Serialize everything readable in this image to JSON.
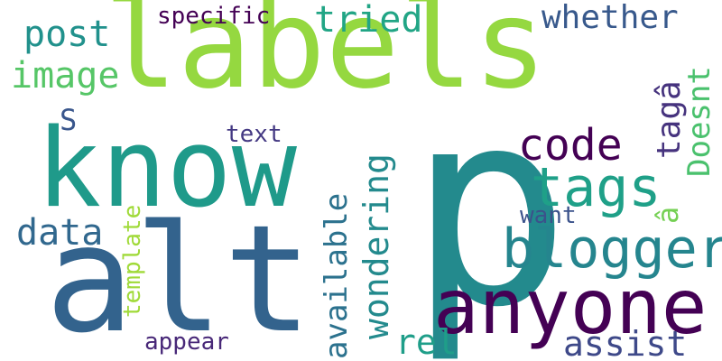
{
  "title": "",
  "words": [
    {
      "key": "labels",
      "text": "labels",
      "color": "#95d840"
    },
    {
      "key": "p",
      "text": "p",
      "color": "#238a8d"
    },
    {
      "key": "alt",
      "text": "alt",
      "color": "#33638d"
    },
    {
      "key": "know",
      "text": "know",
      "color": "#1f9a8a"
    },
    {
      "key": "anyone",
      "text": "anyone",
      "color": "#440154"
    },
    {
      "key": "blogger",
      "text": "blogger",
      "color": "#25858e"
    },
    {
      "key": "tags",
      "text": "tags",
      "color": "#1fa088"
    },
    {
      "key": "code",
      "text": "code",
      "color": "#440154"
    },
    {
      "key": "post",
      "text": "post",
      "color": "#21918c"
    },
    {
      "key": "tried",
      "text": "tried",
      "color": "#21a585"
    },
    {
      "key": "whether",
      "text": "whether",
      "color": "#38598c"
    },
    {
      "key": "specific",
      "text": "specific",
      "color": "#440154"
    },
    {
      "key": "image",
      "text": "image",
      "color": "#56c667"
    },
    {
      "key": "S",
      "text": "S",
      "color": "#39568c"
    },
    {
      "key": "taga",
      "text": "tagâ",
      "color": "#46337e"
    },
    {
      "key": "doesnt",
      "text": "Doesnt",
      "color": "#4ac16d"
    },
    {
      "key": "text",
      "text": "text",
      "color": "#443983"
    },
    {
      "key": "available",
      "text": "available",
      "color": "#2c728e"
    },
    {
      "key": "wondering",
      "text": "wondering",
      "color": "#238a8d"
    },
    {
      "key": "data",
      "text": "data",
      "color": "#31688e"
    },
    {
      "key": "template",
      "text": "template",
      "color": "#a0da39"
    },
    {
      "key": "want",
      "text": "want",
      "color": "#3b528b"
    },
    {
      "key": "a_hat",
      "text": "â",
      "color": "#75d054"
    },
    {
      "key": "rel",
      "text": "rel",
      "color": "#1f9e89"
    },
    {
      "key": "assist",
      "text": "assist",
      "color": "#3e4989"
    },
    {
      "key": "appear",
      "text": "appear",
      "color": "#482878"
    }
  ]
}
